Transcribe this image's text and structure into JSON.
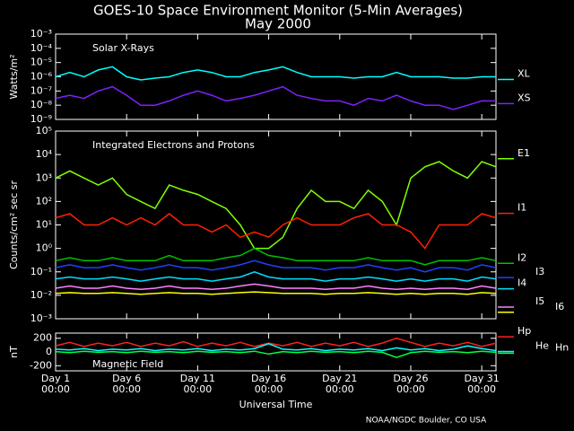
{
  "title": "GOES-10 Space Environment Monitor (5-Min Averages)",
  "subtitle": "May 2000",
  "footer": "NOAA/NGDC Boulder, CO USA",
  "chart_data": [
    {
      "type": "line",
      "title": "Solar X-Rays",
      "y_label": "Watts/m²",
      "log_y": true,
      "ylim": [
        1e-09,
        0.001
      ],
      "yticks": [
        {
          "value": 0.001,
          "label": "10⁻³"
        },
        {
          "value": 0.0001,
          "label": "10⁻⁴"
        },
        {
          "value": 1e-05,
          "label": "10⁻⁵"
        },
        {
          "value": 1e-06,
          "label": "10⁻⁶"
        },
        {
          "value": 1e-07,
          "label": "10⁻⁷"
        },
        {
          "value": 1e-08,
          "label": "10⁻⁸"
        },
        {
          "value": 1e-09,
          "label": "10⁻⁹"
        }
      ],
      "xlim": [
        1,
        32
      ],
      "x": [
        1,
        2,
        3,
        4,
        5,
        6,
        7,
        8,
        9,
        10,
        11,
        12,
        13,
        14,
        15,
        16,
        17,
        18,
        19,
        20,
        21,
        22,
        23,
        24,
        25,
        26,
        27,
        28,
        29,
        30,
        31,
        32
      ],
      "series": [
        {
          "name": "XL",
          "color": "#00ffff",
          "values": [
            1e-06,
            2e-06,
            1e-06,
            3e-06,
            5e-06,
            1e-06,
            6e-07,
            8e-07,
            1e-06,
            2e-06,
            3e-06,
            2e-06,
            1e-06,
            1e-06,
            2e-06,
            3e-06,
            5e-06,
            2e-06,
            1e-06,
            1e-06,
            1e-06,
            8e-07,
            1e-06,
            1e-06,
            2e-06,
            1e-06,
            1e-06,
            1e-06,
            8e-07,
            8e-07,
            1e-06,
            1e-06
          ]
        },
        {
          "name": "XS",
          "color": "#8020ff",
          "values": [
            3e-08,
            5e-08,
            3e-08,
            1e-07,
            2e-07,
            5e-08,
            1e-08,
            1e-08,
            2e-08,
            5e-08,
            1e-07,
            5e-08,
            2e-08,
            3e-08,
            5e-08,
            1e-07,
            2e-07,
            5e-08,
            3e-08,
            2e-08,
            2e-08,
            1e-08,
            3e-08,
            2e-08,
            5e-08,
            2e-08,
            1e-08,
            1e-08,
            5e-09,
            1e-08,
            2e-08,
            2e-08
          ]
        }
      ]
    },
    {
      "type": "line",
      "title": "Integrated Electrons and Protons",
      "y_label": "Counts/cm² sec sr",
      "log_y": true,
      "ylim": [
        0.001,
        100000.0
      ],
      "yticks": [
        {
          "value": 100000.0,
          "label": "10⁵"
        },
        {
          "value": 10000.0,
          "label": "10⁴"
        },
        {
          "value": 1000.0,
          "label": "10³"
        },
        {
          "value": 100.0,
          "label": "10²"
        },
        {
          "value": 10.0,
          "label": "10¹"
        },
        {
          "value": 1,
          "label": "10⁰"
        },
        {
          "value": 0.1,
          "label": "10⁻¹"
        },
        {
          "value": 0.01,
          "label": "10⁻²"
        },
        {
          "value": 0.001,
          "label": "10⁻³"
        }
      ],
      "xlim": [
        1,
        32
      ],
      "x": [
        1,
        2,
        3,
        4,
        5,
        6,
        7,
        8,
        9,
        10,
        11,
        12,
        13,
        14,
        15,
        16,
        17,
        18,
        19,
        20,
        21,
        22,
        23,
        24,
        25,
        26,
        27,
        28,
        29,
        30,
        31,
        32
      ],
      "series": [
        {
          "name": "E1",
          "color": "#80ff00",
          "values": [
            1000.0,
            2000.0,
            1000.0,
            500.0,
            1000.0,
            200.0,
            100.0,
            50.0,
            500.0,
            300.0,
            200.0,
            100.0,
            50.0,
            10.0,
            1,
            1,
            3,
            50.0,
            300.0,
            100.0,
            100.0,
            50.0,
            300.0,
            100.0,
            10.0,
            1000.0,
            3000.0,
            5000.0,
            2000.0,
            1000.0,
            5000.0,
            3000.0
          ]
        },
        {
          "name": "I1",
          "color": "#ff2000",
          "values": [
            20,
            30,
            10,
            10,
            20,
            10,
            20,
            10,
            30,
            10,
            10,
            5,
            10,
            3,
            5,
            3,
            10,
            20,
            10,
            10,
            10,
            20,
            30,
            10,
            10,
            5,
            1,
            10,
            10,
            10,
            30,
            20
          ]
        },
        {
          "name": "I2",
          "color": "#00c000",
          "values": [
            0.3,
            0.4,
            0.3,
            0.3,
            0.4,
            0.3,
            0.3,
            0.3,
            0.5,
            0.3,
            0.3,
            0.3,
            0.4,
            0.5,
            1,
            0.5,
            0.4,
            0.3,
            0.3,
            0.3,
            0.3,
            0.3,
            0.4,
            0.3,
            0.3,
            0.3,
            0.2,
            0.3,
            0.3,
            0.3,
            0.4,
            0.3
          ]
        },
        {
          "name": "I3",
          "color": "#2040ff",
          "values": [
            0.15,
            0.2,
            0.15,
            0.15,
            0.2,
            0.15,
            0.12,
            0.15,
            0.2,
            0.15,
            0.15,
            0.12,
            0.15,
            0.2,
            0.3,
            0.2,
            0.15,
            0.15,
            0.15,
            0.12,
            0.15,
            0.15,
            0.2,
            0.15,
            0.12,
            0.15,
            0.1,
            0.15,
            0.15,
            0.12,
            0.2,
            0.15
          ]
        },
        {
          "name": "I4",
          "color": "#00e0ff",
          "values": [
            0.05,
            0.06,
            0.05,
            0.05,
            0.06,
            0.05,
            0.04,
            0.05,
            0.06,
            0.05,
            0.05,
            0.04,
            0.05,
            0.06,
            0.1,
            0.06,
            0.05,
            0.05,
            0.05,
            0.04,
            0.05,
            0.05,
            0.06,
            0.05,
            0.04,
            0.05,
            0.04,
            0.05,
            0.05,
            0.04,
            0.06,
            0.05
          ]
        },
        {
          "name": "I5",
          "color": "#ff80ff",
          "values": [
            0.02,
            0.025,
            0.02,
            0.02,
            0.025,
            0.02,
            0.018,
            0.02,
            0.025,
            0.02,
            0.02,
            0.018,
            0.02,
            0.025,
            0.03,
            0.025,
            0.02,
            0.02,
            0.02,
            0.018,
            0.02,
            0.02,
            0.025,
            0.02,
            0.018,
            0.02,
            0.018,
            0.02,
            0.02,
            0.018,
            0.025,
            0.02
          ]
        },
        {
          "name": "I6",
          "color": "#ffff00",
          "values": [
            0.012,
            0.013,
            0.012,
            0.012,
            0.013,
            0.012,
            0.011,
            0.012,
            0.013,
            0.012,
            0.012,
            0.011,
            0.012,
            0.013,
            0.014,
            0.013,
            0.012,
            0.012,
            0.012,
            0.011,
            0.012,
            0.012,
            0.013,
            0.012,
            0.011,
            0.012,
            0.011,
            0.012,
            0.012,
            0.011,
            0.013,
            0.012
          ]
        }
      ]
    },
    {
      "type": "line",
      "title": "Magnetic Field",
      "y_label": "nT",
      "log_y": false,
      "ylim": [
        -275,
        275
      ],
      "yticks": [
        200,
        0,
        -200
      ],
      "xlim": [
        1,
        32
      ],
      "x": [
        1,
        2,
        3,
        4,
        5,
        6,
        7,
        8,
        9,
        10,
        11,
        12,
        13,
        14,
        15,
        16,
        17,
        18,
        19,
        20,
        21,
        22,
        23,
        24,
        25,
        26,
        27,
        28,
        29,
        30,
        31,
        32
      ],
      "xticks": [
        {
          "value": 1,
          "label": "Day 1",
          "sublabel": "00:00"
        },
        {
          "value": 6,
          "label": "Day 6",
          "sublabel": "00:00"
        },
        {
          "value": 11,
          "label": "Day 11",
          "sublabel": "00:00"
        },
        {
          "value": 16,
          "label": "Day 16",
          "sublabel": "00:00"
        },
        {
          "value": 21,
          "label": "Day 21",
          "sublabel": "00:00"
        },
        {
          "value": 26,
          "label": "Day 26",
          "sublabel": "00:00"
        },
        {
          "value": 31,
          "label": "Day 31",
          "sublabel": "00:00"
        }
      ],
      "x_label": "Universal Time",
      "series": [
        {
          "name": "Hp",
          "color": "#ff2020",
          "values": [
            90,
            140,
            80,
            130,
            90,
            140,
            80,
            130,
            90,
            150,
            80,
            130,
            90,
            140,
            80,
            130,
            90,
            140,
            80,
            130,
            90,
            140,
            80,
            130,
            200,
            140,
            80,
            130,
            90,
            140,
            80,
            130
          ]
        },
        {
          "name": "He",
          "color": "#00ffff",
          "values": [
            40,
            30,
            50,
            20,
            40,
            30,
            50,
            20,
            40,
            30,
            50,
            20,
            40,
            30,
            50,
            120,
            40,
            30,
            50,
            20,
            40,
            30,
            50,
            20,
            60,
            30,
            50,
            20,
            40,
            90,
            50,
            20
          ]
        },
        {
          "name": "Hn",
          "color": "#00ff40",
          "values": [
            5,
            -10,
            10,
            -5,
            5,
            -10,
            10,
            -5,
            5,
            -10,
            10,
            -5,
            5,
            -10,
            10,
            -30,
            5,
            -10,
            10,
            -5,
            5,
            -10,
            10,
            -5,
            -80,
            -10,
            10,
            -5,
            5,
            -10,
            10,
            -5
          ]
        }
      ]
    }
  ]
}
